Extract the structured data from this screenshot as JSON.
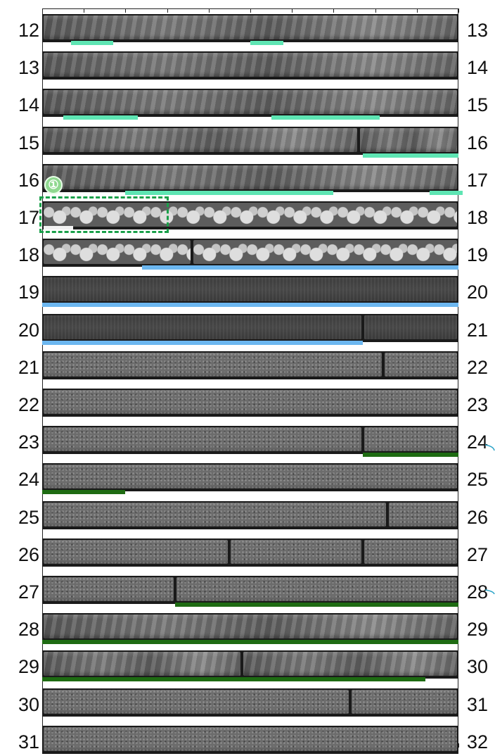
{
  "left_labels": [
    "12",
    "13",
    "14",
    "15",
    "16",
    "17",
    "18",
    "19",
    "20",
    "21",
    "22",
    "23",
    "24",
    "25",
    "26",
    "27",
    "28",
    "29",
    "30",
    "31"
  ],
  "right_labels": [
    "13",
    "14",
    "15",
    "16",
    "17",
    "18",
    "19",
    "20",
    "21",
    "22",
    "23",
    "24",
    "25",
    "26",
    "27",
    "28",
    "29",
    "30",
    "31",
    "32"
  ],
  "marker": {
    "number": "①"
  },
  "colors": {
    "teal": "#5ee5b3",
    "blue": "#6cb7f0",
    "green": "#1e6b12",
    "marker_box": "#1aa04a",
    "core_background": "#1a1a1a"
  }
}
